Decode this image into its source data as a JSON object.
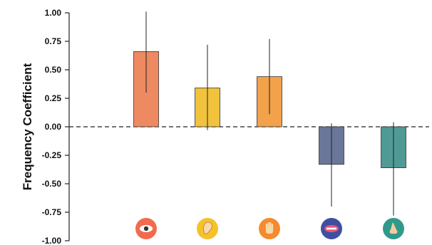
{
  "chart_data": {
    "type": "bar",
    "title": "",
    "xlabel": "",
    "ylabel": "Frequency Coefficient",
    "ylim": [
      -1.0,
      1.0
    ],
    "yticks": [
      "1.00",
      "0.75",
      "0.50",
      "0.25",
      "0.00",
      "-0.25",
      "-0.50",
      "-0.75",
      "-1.00"
    ],
    "categories": [
      "eye",
      "ear",
      "hand",
      "mouth",
      "nose"
    ],
    "values": [
      0.66,
      0.34,
      0.44,
      -0.33,
      -0.36
    ],
    "error_low": [
      0.3,
      -0.03,
      0.11,
      -0.7,
      -0.78
    ],
    "error_high": [
      1.01,
      0.72,
      0.77,
      0.03,
      0.04
    ],
    "colors": [
      "#ee8a62",
      "#f1c23c",
      "#f3a14a",
      "#6b7799",
      "#4f9a95"
    ],
    "icon_colors": [
      "#f26b4e",
      "#f5c22a",
      "#f58a2e",
      "#3f4fa0",
      "#2f9a8c"
    ],
    "icons": [
      "eye-icon",
      "ear-icon",
      "hand-icon",
      "mouth-icon",
      "nose-icon"
    ],
    "zero_line": "dashed",
    "grid": false
  }
}
